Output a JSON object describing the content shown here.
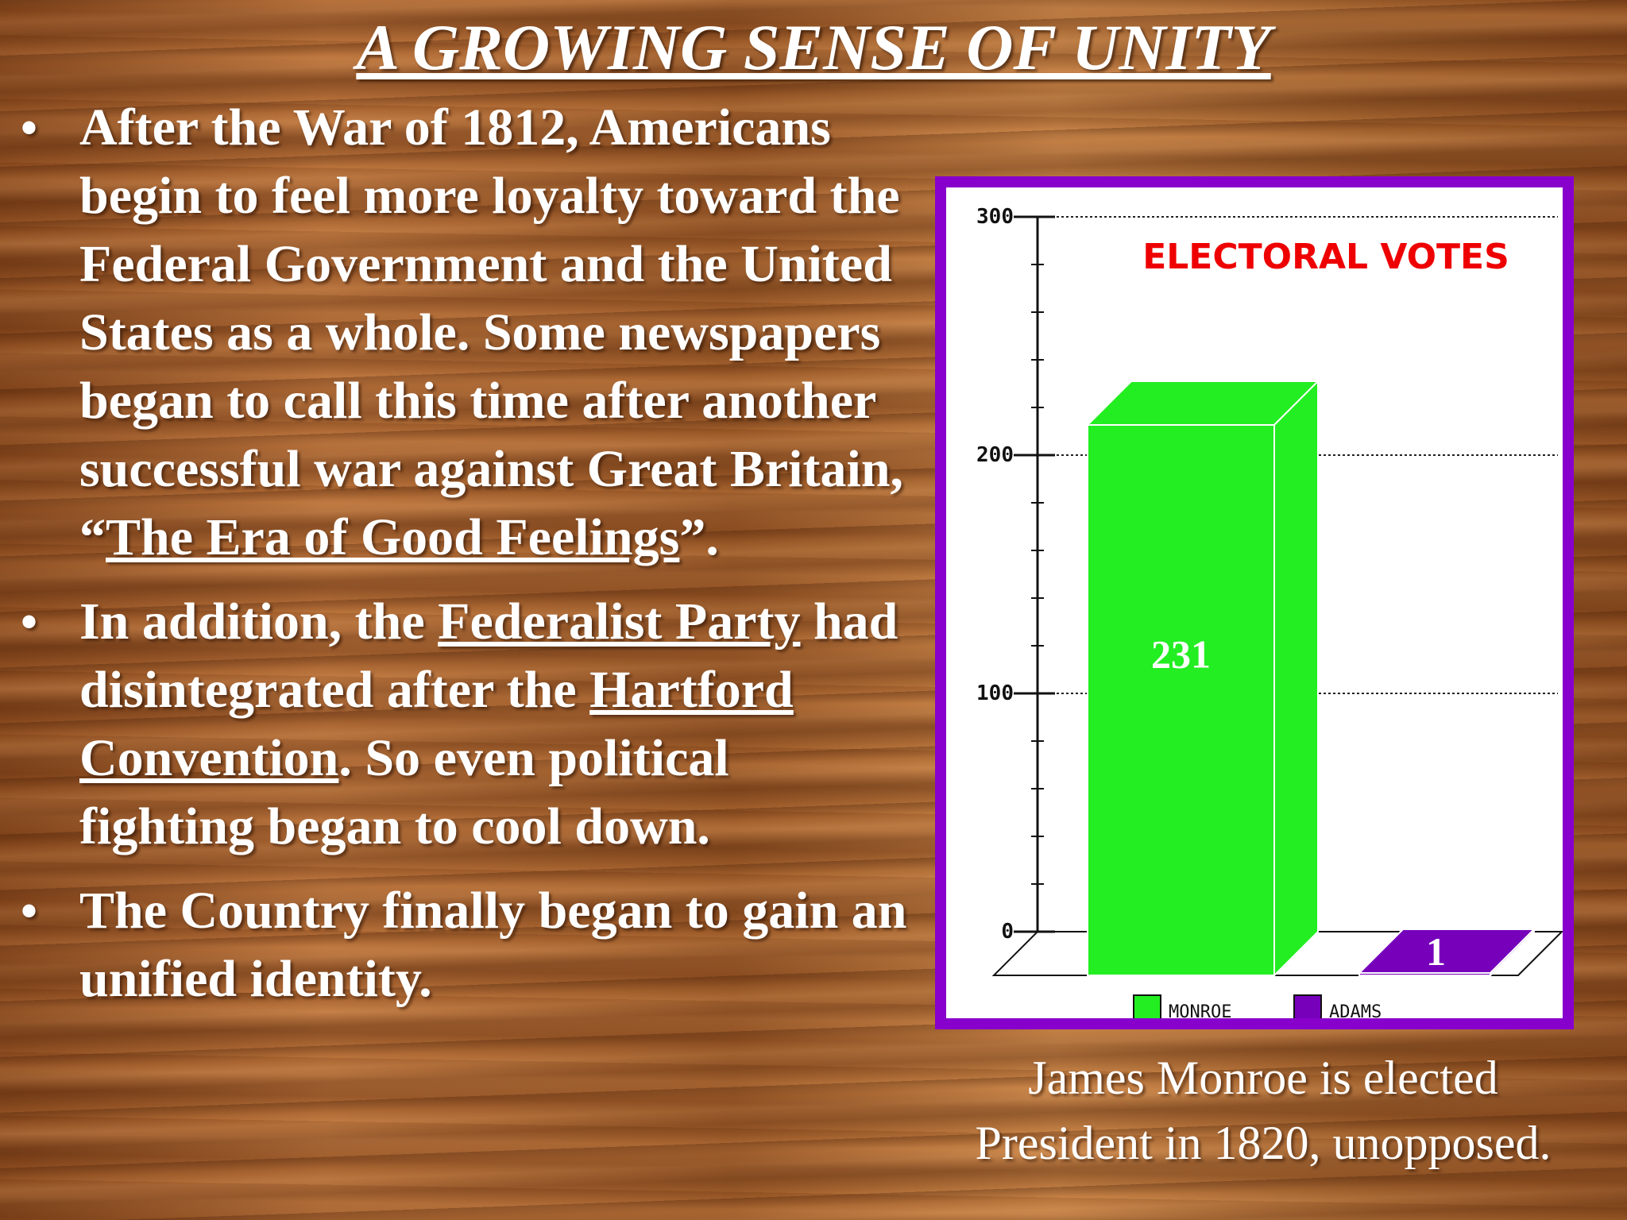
{
  "slide": {
    "title": "A GROWING SENSE OF UNITY",
    "bullet_char": "•",
    "bullets": [
      {
        "parts": [
          {
            "text": "After the War of 1812, Americans begin to feel more loyalty toward the Federal Government and the United States as a whole.  Some newspapers began to call this time after another successful war against Great Britain, “",
            "underline": false
          },
          {
            "text": "The Era of Good Feelings",
            "underline": true
          },
          {
            "text": "”.",
            "underline": false
          }
        ]
      },
      {
        "parts": [
          {
            "text": "In addition, the ",
            "underline": false
          },
          {
            "text": "Federalist Party",
            "underline": true
          },
          {
            "text": " had disintegrated after the ",
            "underline": false
          },
          {
            "text": "Hartford Convention",
            "underline": true
          },
          {
            "text": ".  So even political fighting began to cool down.",
            "underline": false
          }
        ]
      },
      {
        "parts": [
          {
            "text": "The Country finally began to gain an unified identity.",
            "underline": false
          }
        ]
      }
    ],
    "caption_line1": "James Monroe is elected",
    "caption_line2": "President in 1820, unopposed."
  },
  "chart_data": {
    "type": "bar",
    "title": "ELECTORAL VOTES",
    "categories": [
      "MONROE",
      "ADAMS"
    ],
    "values": [
      231,
      1
    ],
    "data_labels": [
      "231",
      "1"
    ],
    "colors": [
      "#22ee22",
      "#7700bb"
    ],
    "title_color": "#ee0000",
    "frame_color": "#8800cc",
    "ylim": [
      0,
      300
    ],
    "yticks": [
      0,
      100,
      200,
      300
    ],
    "grid": true,
    "legend_position": "bottom",
    "legend": [
      {
        "label": "MONROE",
        "color": "#22ee22"
      },
      {
        "label": "ADAMS",
        "color": "#7700bb"
      }
    ]
  }
}
